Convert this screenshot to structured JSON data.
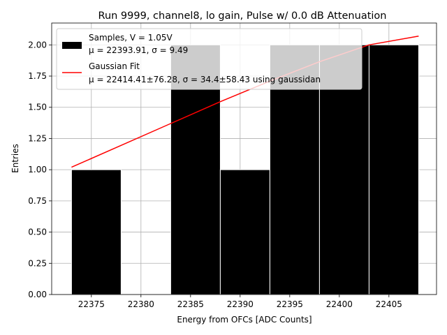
{
  "chart_data": {
    "type": "bar",
    "title": "Run 9999, channel8, lo gain, Pulse w/ 0.0 dB Attenuation",
    "xlabel": "Energy from OFCs [ADC Counts]",
    "ylabel": "Entries",
    "xlim": [
      22371.0,
      22409.8
    ],
    "ylim": [
      0,
      2.175
    ],
    "grid": true,
    "legend_position": "upper-left",
    "x_ticks": [
      22375,
      22380,
      22385,
      22390,
      22395,
      22400,
      22405
    ],
    "x_tick_labels": [
      "22375",
      "22380",
      "22385",
      "22390",
      "22395",
      "22400",
      "22405"
    ],
    "y_ticks": [
      0,
      0.25,
      0.5,
      0.75,
      1.0,
      1.25,
      1.5,
      1.75,
      2.0
    ],
    "y_tick_labels": [
      "0.00",
      "0.25",
      "0.50",
      "0.75",
      "1.00",
      "1.25",
      "1.50",
      "1.75",
      "2.00"
    ],
    "histogram": {
      "name": "Samples, V = 1.05V",
      "stats_label": "μ = 22393.91, σ = 9.49",
      "color": "#000000",
      "bins": [
        {
          "x0": 22373.0,
          "x1": 22378.0,
          "count": 1
        },
        {
          "x0": 22378.0,
          "x1": 22383.0,
          "count": 0
        },
        {
          "x0": 22383.0,
          "x1": 22388.0,
          "count": 2
        },
        {
          "x0": 22388.0,
          "x1": 22393.0,
          "count": 1
        },
        {
          "x0": 22393.0,
          "x1": 22398.0,
          "count": 2
        },
        {
          "x0": 22398.0,
          "x1": 22403.0,
          "count": 2
        },
        {
          "x0": 22403.0,
          "x1": 22408.0,
          "count": 2
        }
      ]
    },
    "fit": {
      "name": "Gaussian Fit",
      "stats_label": "μ = 22414.41±76.28, σ = 34.4±58.43 using gaussidan",
      "color": "#ff0000",
      "x": [
        22373.0,
        22378.0,
        22383.0,
        22388.0,
        22393.0,
        22398.0,
        22403.0,
        22408.0
      ],
      "y": [
        1.02,
        1.195,
        1.37,
        1.545,
        1.71,
        1.865,
        2.0,
        2.07
      ]
    }
  }
}
